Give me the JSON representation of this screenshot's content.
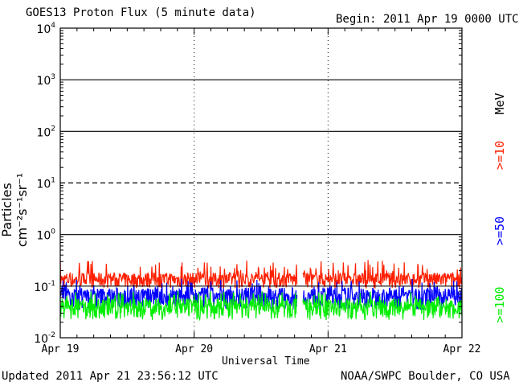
{
  "header": {
    "title": "GOES13 Proton Flux (5 minute data)",
    "begin": "Begin: 2011 Apr 19 0000 UTC"
  },
  "footer": {
    "updated": "Updated 2011 Apr 21 23:56:12 UTC",
    "credit": "NOAA/SWPC Boulder, CO USA"
  },
  "colors": {
    "series_10": "#ff2000",
    "series_50": "#0000ff",
    "series_100": "#00ee00"
  },
  "chart_data": {
    "type": "line",
    "title": "GOES13 Proton Flux (5 minute data)",
    "xlabel": "Universal Time",
    "ylabel": "Particles cm⁻²s⁻¹sr⁻¹",
    "y_scale": "log",
    "ylim": [
      0.01,
      10000
    ],
    "y_ticks": [
      {
        "value": 10000,
        "base": "10",
        "exp": "4"
      },
      {
        "value": 1000,
        "base": "10",
        "exp": "3"
      },
      {
        "value": 100,
        "base": "10",
        "exp": "2"
      },
      {
        "value": 10,
        "base": "10",
        "exp": "1"
      },
      {
        "value": 1,
        "base": "10",
        "exp": "0"
      },
      {
        "value": 0.1,
        "base": "10",
        "exp": "-1"
      },
      {
        "value": 0.01,
        "base": "10",
        "exp": "-2"
      }
    ],
    "x_ticks": [
      "Apr 19",
      "Apr 20",
      "Apr 21",
      "Apr 22"
    ],
    "xlim_days": [
      0,
      3
    ],
    "threshold_lines": [
      {
        "value": 10,
        "style": "dashed"
      }
    ],
    "right_unit": "MeV",
    "data_gap_days": [
      1.77,
      1.81
    ],
    "series": [
      {
        "name": ">=10",
        "color": "#ff2000",
        "typical": 0.14,
        "min": 0.09,
        "max": 0.33
      },
      {
        "name": ">=50",
        "color": "#0000ff",
        "typical": 0.065,
        "min": 0.035,
        "max": 0.14
      },
      {
        "name": ">=100",
        "color": "#00ee00",
        "typical": 0.04,
        "min": 0.022,
        "max": 0.08
      }
    ]
  }
}
